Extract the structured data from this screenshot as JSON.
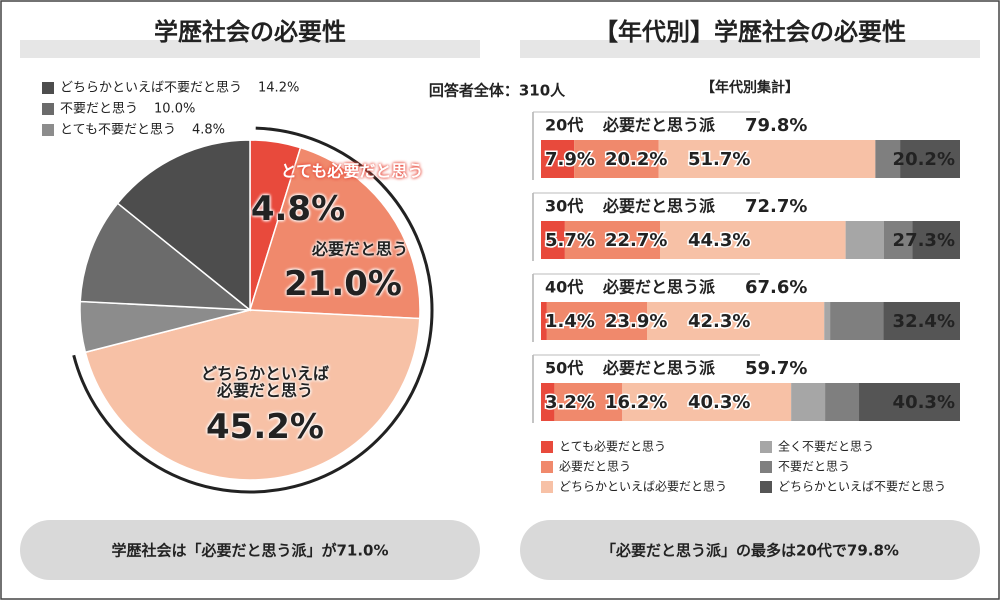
{
  "respondents": "回答者全体：310人",
  "chart_data": [
    {
      "type": "pie",
      "title": "学歴社会の必要性",
      "categories": [
        "とても必要だと思う",
        "必要だと思う",
        "どちらかといえば\n必要だと思う",
        "とても不要だと思う",
        "不要だと思う",
        "どちらかといえば不要だと思う"
      ],
      "values": [
        4.8,
        21.0,
        45.2,
        4.8,
        10.0,
        14.2
      ],
      "value_labels": [
        "4.8%",
        "21.0%",
        "45.2%",
        "4.8%",
        "10.0%",
        "14.2%"
      ],
      "colors": [
        "#e84a3c",
        "#f0896c",
        "#f7c1a6",
        "#8c8c8c",
        "#6b6b6b",
        "#4d4d4d"
      ],
      "note": "学歴社会は「必要だと思う派」が71.0%"
    },
    {
      "type": "bar",
      "orientation": "horizontal",
      "stacked": true,
      "title": "【年代別】学歴社会の必要性",
      "subtitle": "【年代別集計】",
      "categories": [
        "20代",
        "30代",
        "40代",
        "50代"
      ],
      "group_label": "必要だと思う派",
      "agree_totals": [
        "79.8%",
        "72.7%",
        "67.6%",
        "59.7%"
      ],
      "disagree_totals": [
        "20.2%",
        "27.3%",
        "32.4%",
        "40.3%"
      ],
      "series": [
        {
          "name": "とても必要だと思う",
          "color": "#e84a3c",
          "values": [
            7.9,
            5.7,
            1.4,
            3.2
          ],
          "value_labels": [
            "7.9%",
            "5.7%",
            "1.4%",
            "3.2%"
          ]
        },
        {
          "name": "必要だと思う",
          "color": "#f0896c",
          "values": [
            20.2,
            22.7,
            23.9,
            16.2
          ],
          "value_labels": [
            "20.2%",
            "22.7%",
            "23.9%",
            "16.2%"
          ]
        },
        {
          "name": "どちらかといえば必要だと思う",
          "color": "#f7c1a6",
          "values": [
            51.7,
            44.3,
            42.3,
            40.3
          ],
          "value_labels": [
            "51.7%",
            "44.3%",
            "42.3%",
            "40.3%"
          ]
        },
        {
          "name": "全く不要だと思う",
          "color": "#a6a6a6",
          "values": [
            0.0,
            9.1,
            1.4,
            8.1
          ]
        },
        {
          "name": "不要だと思う",
          "color": "#7f7f7f",
          "values": [
            5.9,
            6.8,
            12.7,
            8.1
          ]
        },
        {
          "name": "どちらかといえば不要だと思う",
          "color": "#555555",
          "values": [
            14.3,
            11.4,
            18.3,
            24.1
          ]
        }
      ],
      "note": "「必要だと思う派」の最多は20代で79.8%"
    }
  ]
}
